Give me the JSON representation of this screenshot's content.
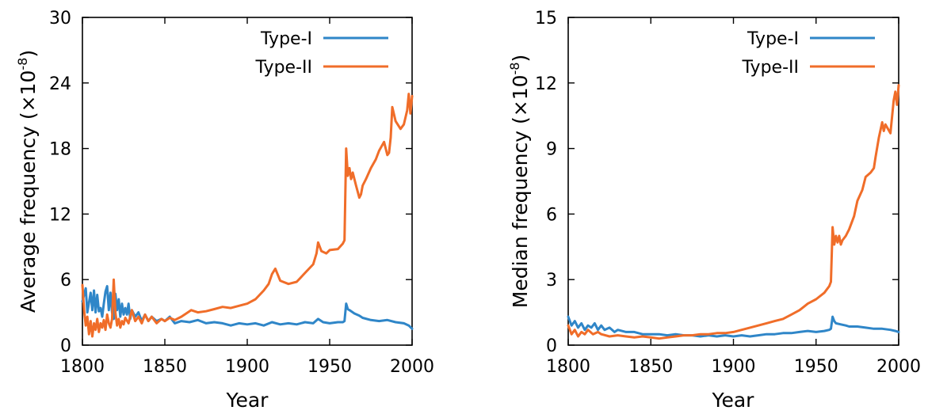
{
  "chart_data": [
    {
      "type": "line",
      "xlabel": "Year",
      "ylabel": "Average frequency (×10",
      "ylabel_exp": "-8",
      "ylabel_close": ")",
      "xlim": [
        1800,
        2000
      ],
      "ylim": [
        0,
        30
      ],
      "xticks": [
        1800,
        1850,
        1900,
        1950,
        2000
      ],
      "yticks": [
        0,
        6,
        12,
        18,
        24,
        30
      ],
      "grid": false,
      "legend_position": "top-right",
      "series": [
        {
          "name": "Type-I",
          "color": "#2f86c8",
          "x": [
            1800,
            1802,
            1803,
            1805,
            1806,
            1807,
            1808,
            1809,
            1810,
            1811,
            1812,
            1813,
            1814,
            1815,
            1816,
            1817,
            1818,
            1819,
            1820,
            1821,
            1822,
            1823,
            1824,
            1825,
            1826,
            1827,
            1828,
            1829,
            1830,
            1832,
            1834,
            1836,
            1838,
            1840,
            1842,
            1845,
            1848,
            1850,
            1853,
            1856,
            1860,
            1865,
            1870,
            1875,
            1880,
            1885,
            1890,
            1895,
            1900,
            1905,
            1910,
            1915,
            1920,
            1925,
            1930,
            1935,
            1940,
            1943,
            1946,
            1950,
            1955,
            1958,
            1959,
            1960,
            1961,
            1962,
            1965,
            1968,
            1970,
            1975,
            1980,
            1985,
            1990,
            1995,
            1998,
            2000
          ],
          "y": [
            4.0,
            5.2,
            3.0,
            4.8,
            3.2,
            5.0,
            3.0,
            4.6,
            3.1,
            3.4,
            2.6,
            3.8,
            4.9,
            5.4,
            3.2,
            4.8,
            3.0,
            2.4,
            4.7,
            3.2,
            4.2,
            2.6,
            3.8,
            2.8,
            3.4,
            2.8,
            3.8,
            2.4,
            3.2,
            2.6,
            3.0,
            2.2,
            2.8,
            2.2,
            2.6,
            2.2,
            2.4,
            2.2,
            2.6,
            2.0,
            2.2,
            2.1,
            2.3,
            2.0,
            2.1,
            2.0,
            1.8,
            2.0,
            1.9,
            2.0,
            1.8,
            2.1,
            1.9,
            2.0,
            1.9,
            2.1,
            2.0,
            2.4,
            2.1,
            2.0,
            2.1,
            2.1,
            2.2,
            3.8,
            3.3,
            3.2,
            2.9,
            2.7,
            2.5,
            2.3,
            2.2,
            2.3,
            2.1,
            2.0,
            1.8,
            1.5
          ]
        },
        {
          "name": "Type-II",
          "color": "#f06d29",
          "x": [
            1800,
            1801,
            1802,
            1803,
            1804,
            1805,
            1806,
            1807,
            1808,
            1809,
            1810,
            1811,
            1812,
            1813,
            1814,
            1815,
            1816,
            1817,
            1818,
            1819,
            1820,
            1821,
            1822,
            1823,
            1824,
            1825,
            1826,
            1828,
            1830,
            1832,
            1834,
            1836,
            1838,
            1840,
            1842,
            1845,
            1848,
            1850,
            1853,
            1856,
            1860,
            1863,
            1866,
            1870,
            1875,
            1880,
            1885,
            1890,
            1895,
            1900,
            1905,
            1910,
            1913,
            1915,
            1917,
            1920,
            1925,
            1930,
            1935,
            1940,
            1942,
            1943,
            1945,
            1948,
            1950,
            1955,
            1958,
            1959,
            1960,
            1961,
            1962,
            1963,
            1964,
            1966,
            1968,
            1969,
            1970,
            1972,
            1975,
            1978,
            1980,
            1983,
            1985,
            1986,
            1987,
            1988,
            1990,
            1993,
            1995,
            1997,
            1998,
            1999,
            2000
          ],
          "y": [
            5.5,
            3.2,
            1.8,
            2.6,
            1.0,
            2.2,
            0.8,
            2.0,
            1.4,
            2.4,
            1.2,
            2.0,
            1.6,
            2.3,
            1.4,
            2.8,
            2.0,
            1.6,
            2.4,
            6.0,
            3.0,
            1.8,
            2.4,
            1.6,
            2.2,
            1.9,
            2.5,
            2.0,
            3.2,
            2.2,
            2.6,
            2.0,
            2.8,
            2.2,
            2.6,
            2.0,
            2.4,
            2.2,
            2.5,
            2.3,
            2.6,
            2.9,
            3.2,
            3.0,
            3.1,
            3.3,
            3.5,
            3.4,
            3.6,
            3.8,
            4.2,
            5.0,
            5.6,
            6.5,
            7.0,
            5.9,
            5.6,
            5.8,
            6.6,
            7.4,
            8.4,
            9.4,
            8.6,
            8.4,
            8.7,
            8.8,
            9.3,
            9.6,
            18.0,
            15.5,
            16.2,
            15.2,
            15.8,
            14.6,
            13.5,
            13.8,
            14.6,
            15.2,
            16.2,
            17.0,
            17.8,
            18.6,
            17.4,
            17.6,
            19.0,
            21.8,
            20.5,
            19.8,
            20.2,
            21.5,
            23.0,
            21.2,
            22.8
          ]
        }
      ]
    },
    {
      "type": "line",
      "xlabel": "Year",
      "ylabel": "Median frequency (×10",
      "ylabel_exp": "-8",
      "ylabel_close": ")",
      "xlim": [
        1800,
        2000
      ],
      "ylim": [
        0,
        15
      ],
      "xticks": [
        1800,
        1850,
        1900,
        1950,
        2000
      ],
      "yticks": [
        0,
        3,
        6,
        9,
        12,
        15
      ],
      "grid": false,
      "legend_position": "top-right",
      "series": [
        {
          "name": "Type-I",
          "color": "#2f86c8",
          "x": [
            1800,
            1802,
            1804,
            1806,
            1808,
            1810,
            1812,
            1814,
            1816,
            1818,
            1820,
            1822,
            1825,
            1828,
            1830,
            1835,
            1840,
            1845,
            1850,
            1855,
            1860,
            1865,
            1870,
            1875,
            1880,
            1885,
            1890,
            1895,
            1900,
            1905,
            1910,
            1915,
            1920,
            1925,
            1930,
            1935,
            1940,
            1945,
            1950,
            1955,
            1958,
            1959,
            1960,
            1961,
            1962,
            1965,
            1968,
            1970,
            1975,
            1980,
            1985,
            1990,
            1995,
            1998,
            2000
          ],
          "y": [
            1.3,
            0.9,
            1.1,
            0.8,
            1.0,
            0.7,
            0.9,
            0.8,
            1.0,
            0.7,
            0.9,
            0.7,
            0.8,
            0.6,
            0.7,
            0.6,
            0.6,
            0.5,
            0.5,
            0.5,
            0.45,
            0.5,
            0.45,
            0.45,
            0.4,
            0.45,
            0.4,
            0.45,
            0.4,
            0.45,
            0.4,
            0.45,
            0.5,
            0.5,
            0.55,
            0.55,
            0.6,
            0.65,
            0.6,
            0.65,
            0.7,
            0.75,
            1.3,
            1.1,
            1.0,
            0.95,
            0.9,
            0.85,
            0.85,
            0.8,
            0.75,
            0.75,
            0.7,
            0.65,
            0.6
          ]
        },
        {
          "name": "Type-II",
          "color": "#f06d29",
          "x": [
            1800,
            1802,
            1804,
            1806,
            1808,
            1810,
            1812,
            1815,
            1818,
            1820,
            1825,
            1830,
            1835,
            1840,
            1845,
            1850,
            1855,
            1860,
            1865,
            1870,
            1875,
            1880,
            1885,
            1890,
            1895,
            1900,
            1905,
            1910,
            1915,
            1920,
            1925,
            1930,
            1935,
            1940,
            1945,
            1950,
            1955,
            1958,
            1959,
            1960,
            1961,
            1962,
            1963,
            1964,
            1965,
            1966,
            1968,
            1970,
            1973,
            1975,
            1978,
            1980,
            1983,
            1985,
            1986,
            1988,
            1990,
            1991,
            1992,
            1995,
            1997,
            1998,
            1999,
            2000
          ],
          "y": [
            0.9,
            0.5,
            0.7,
            0.4,
            0.6,
            0.5,
            0.7,
            0.5,
            0.6,
            0.5,
            0.4,
            0.45,
            0.4,
            0.35,
            0.4,
            0.35,
            0.3,
            0.35,
            0.4,
            0.45,
            0.45,
            0.5,
            0.5,
            0.55,
            0.55,
            0.6,
            0.7,
            0.8,
            0.9,
            1.0,
            1.1,
            1.2,
            1.4,
            1.6,
            1.9,
            2.1,
            2.4,
            2.7,
            2.9,
            5.4,
            4.6,
            5.0,
            4.7,
            5.0,
            4.6,
            4.8,
            5.0,
            5.3,
            5.9,
            6.6,
            7.1,
            7.7,
            7.9,
            8.1,
            8.6,
            9.5,
            10.2,
            9.8,
            10.1,
            9.7,
            11.2,
            11.6,
            11.0,
            11.9
          ]
        }
      ]
    }
  ]
}
